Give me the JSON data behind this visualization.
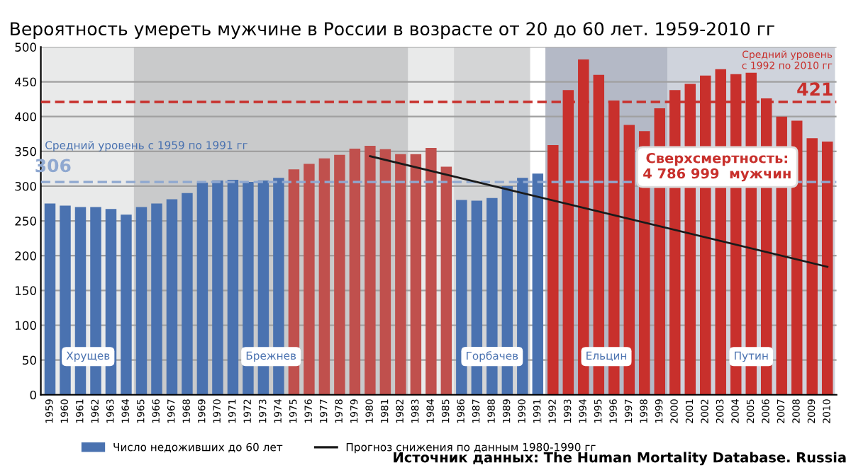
{
  "chart_data": {
    "type": "bar",
    "title": "Вероятность умереть мужчине в России в возрасте от 20 до 60 лет. 1959-2010 гг",
    "categories": [
      "1959",
      "1960",
      "1961",
      "1962",
      "1963",
      "1964",
      "1965",
      "1966",
      "1967",
      "1968",
      "1969",
      "1970",
      "1971",
      "1972",
      "1973",
      "1974",
      "1975",
      "1976",
      "1977",
      "1978",
      "1979",
      "1980",
      "1981",
      "1982",
      "1983",
      "1984",
      "1985",
      "1986",
      "1987",
      "1988",
      "1989",
      "1990",
      "1991",
      "1992",
      "1993",
      "1994",
      "1995",
      "1996",
      "1997",
      "1998",
      "1999",
      "2000",
      "2001",
      "2002",
      "2003",
      "2004",
      "2005",
      "2006",
      "2007",
      "2008",
      "2009",
      "2010"
    ],
    "series": [
      {
        "name": "Число недоживших до 60 лет",
        "color": "#4a72b0",
        "values": [
          275,
          272,
          270,
          270,
          267,
          259,
          270,
          275,
          281,
          290,
          305,
          308,
          309,
          306,
          308,
          312,
          324,
          332,
          340,
          345,
          354,
          358,
          353,
          346,
          346,
          355,
          328,
          280,
          279,
          283,
          300,
          312,
          318,
          359,
          438,
          482,
          460,
          423,
          388,
          379,
          412,
          438,
          447,
          459,
          468,
          461,
          463,
          426,
          400,
          394,
          369,
          364
        ],
        "colors": [
          "#4a72b0",
          "#4a72b0",
          "#4a72b0",
          "#4a72b0",
          "#4a72b0",
          "#4a72b0",
          "#4a72b0",
          "#4a72b0",
          "#4a72b0",
          "#4a72b0",
          "#4a72b0",
          "#4a72b0",
          "#4a72b0",
          "#4a72b0",
          "#4a72b0",
          "#4a72b0",
          "#c0504d",
          "#c0504d",
          "#c0504d",
          "#c0504d",
          "#c0504d",
          "#c0504d",
          "#c0504d",
          "#c0504d",
          "#c0504d",
          "#c0504d",
          "#c0504d",
          "#4a72b0",
          "#4a72b0",
          "#4a72b0",
          "#4a72b0",
          "#4a72b0",
          "#4a72b0",
          "#c8302c",
          "#c8302c",
          "#c8302c",
          "#c8302c",
          "#c8302c",
          "#c8302c",
          "#c8302c",
          "#c8302c",
          "#c8302c",
          "#c8302c",
          "#c8302c",
          "#c8302c",
          "#c8302c",
          "#c8302c",
          "#c8302c",
          "#c8302c",
          "#c8302c",
          "#c8302c",
          "#c8302c"
        ]
      },
      {
        "name": "Прогноз снижения по данным 1980-1990 гг",
        "type": "line",
        "color": "#1a1a1a",
        "values": [
          null,
          null,
          null,
          null,
          null,
          null,
          null,
          null,
          null,
          null,
          null,
          null,
          null,
          null,
          null,
          null,
          null,
          null,
          null,
          null,
          null,
          343,
          null,
          null,
          null,
          null,
          null,
          null,
          null,
          null,
          null,
          null,
          null,
          null,
          null,
          null,
          null,
          null,
          null,
          null,
          null,
          null,
          null,
          null,
          null,
          null,
          null,
          null,
          null,
          null,
          null,
          184
        ]
      }
    ],
    "ylim": [
      0,
      500
    ],
    "yticks": [
      0,
      50,
      100,
      150,
      200,
      250,
      300,
      350,
      400,
      450,
      500
    ],
    "grid": "y",
    "legend": "bottom",
    "bands": [
      {
        "axis": "x",
        "from": "1959",
        "to": "1964",
        "label": "Хрущев",
        "color": "#e9eaea"
      },
      {
        "axis": "x",
        "from": "1965",
        "to": "1982",
        "label": "Брежнев",
        "color": "#c9cacb"
      },
      {
        "axis": "x",
        "from": "1983",
        "to": "1985",
        "color": "#e9eaea"
      },
      {
        "axis": "x",
        "from": "1986",
        "to": "1990",
        "label": "Горбачев",
        "color": "#d4d5d6"
      },
      {
        "axis": "x",
        "from": "1992",
        "to": "1999",
        "label": "Ельцин",
        "color": "#b4b9c6"
      },
      {
        "axis": "x",
        "from": "2000",
        "to": "2010",
        "label": "Путин",
        "color": "#cfd3dc"
      }
    ],
    "ref_lines": [
      {
        "axis": "y",
        "value": 306,
        "label": "306",
        "color": "#8fa8d0",
        "line_style": "dashed"
      },
      {
        "axis": "y",
        "value": 421,
        "label": "421",
        "color": "#c8302c",
        "line_style": "dashed"
      }
    ],
    "annotations": [
      "Средний уровень с 1959 по 1991 гг",
      "Средний уровень\nс 1992 по 2010 гг",
      "Сверхсмертность:\n4 786 999  мужчин",
      "Источник данных: The Human Mortality Database. Russia"
    ]
  }
}
